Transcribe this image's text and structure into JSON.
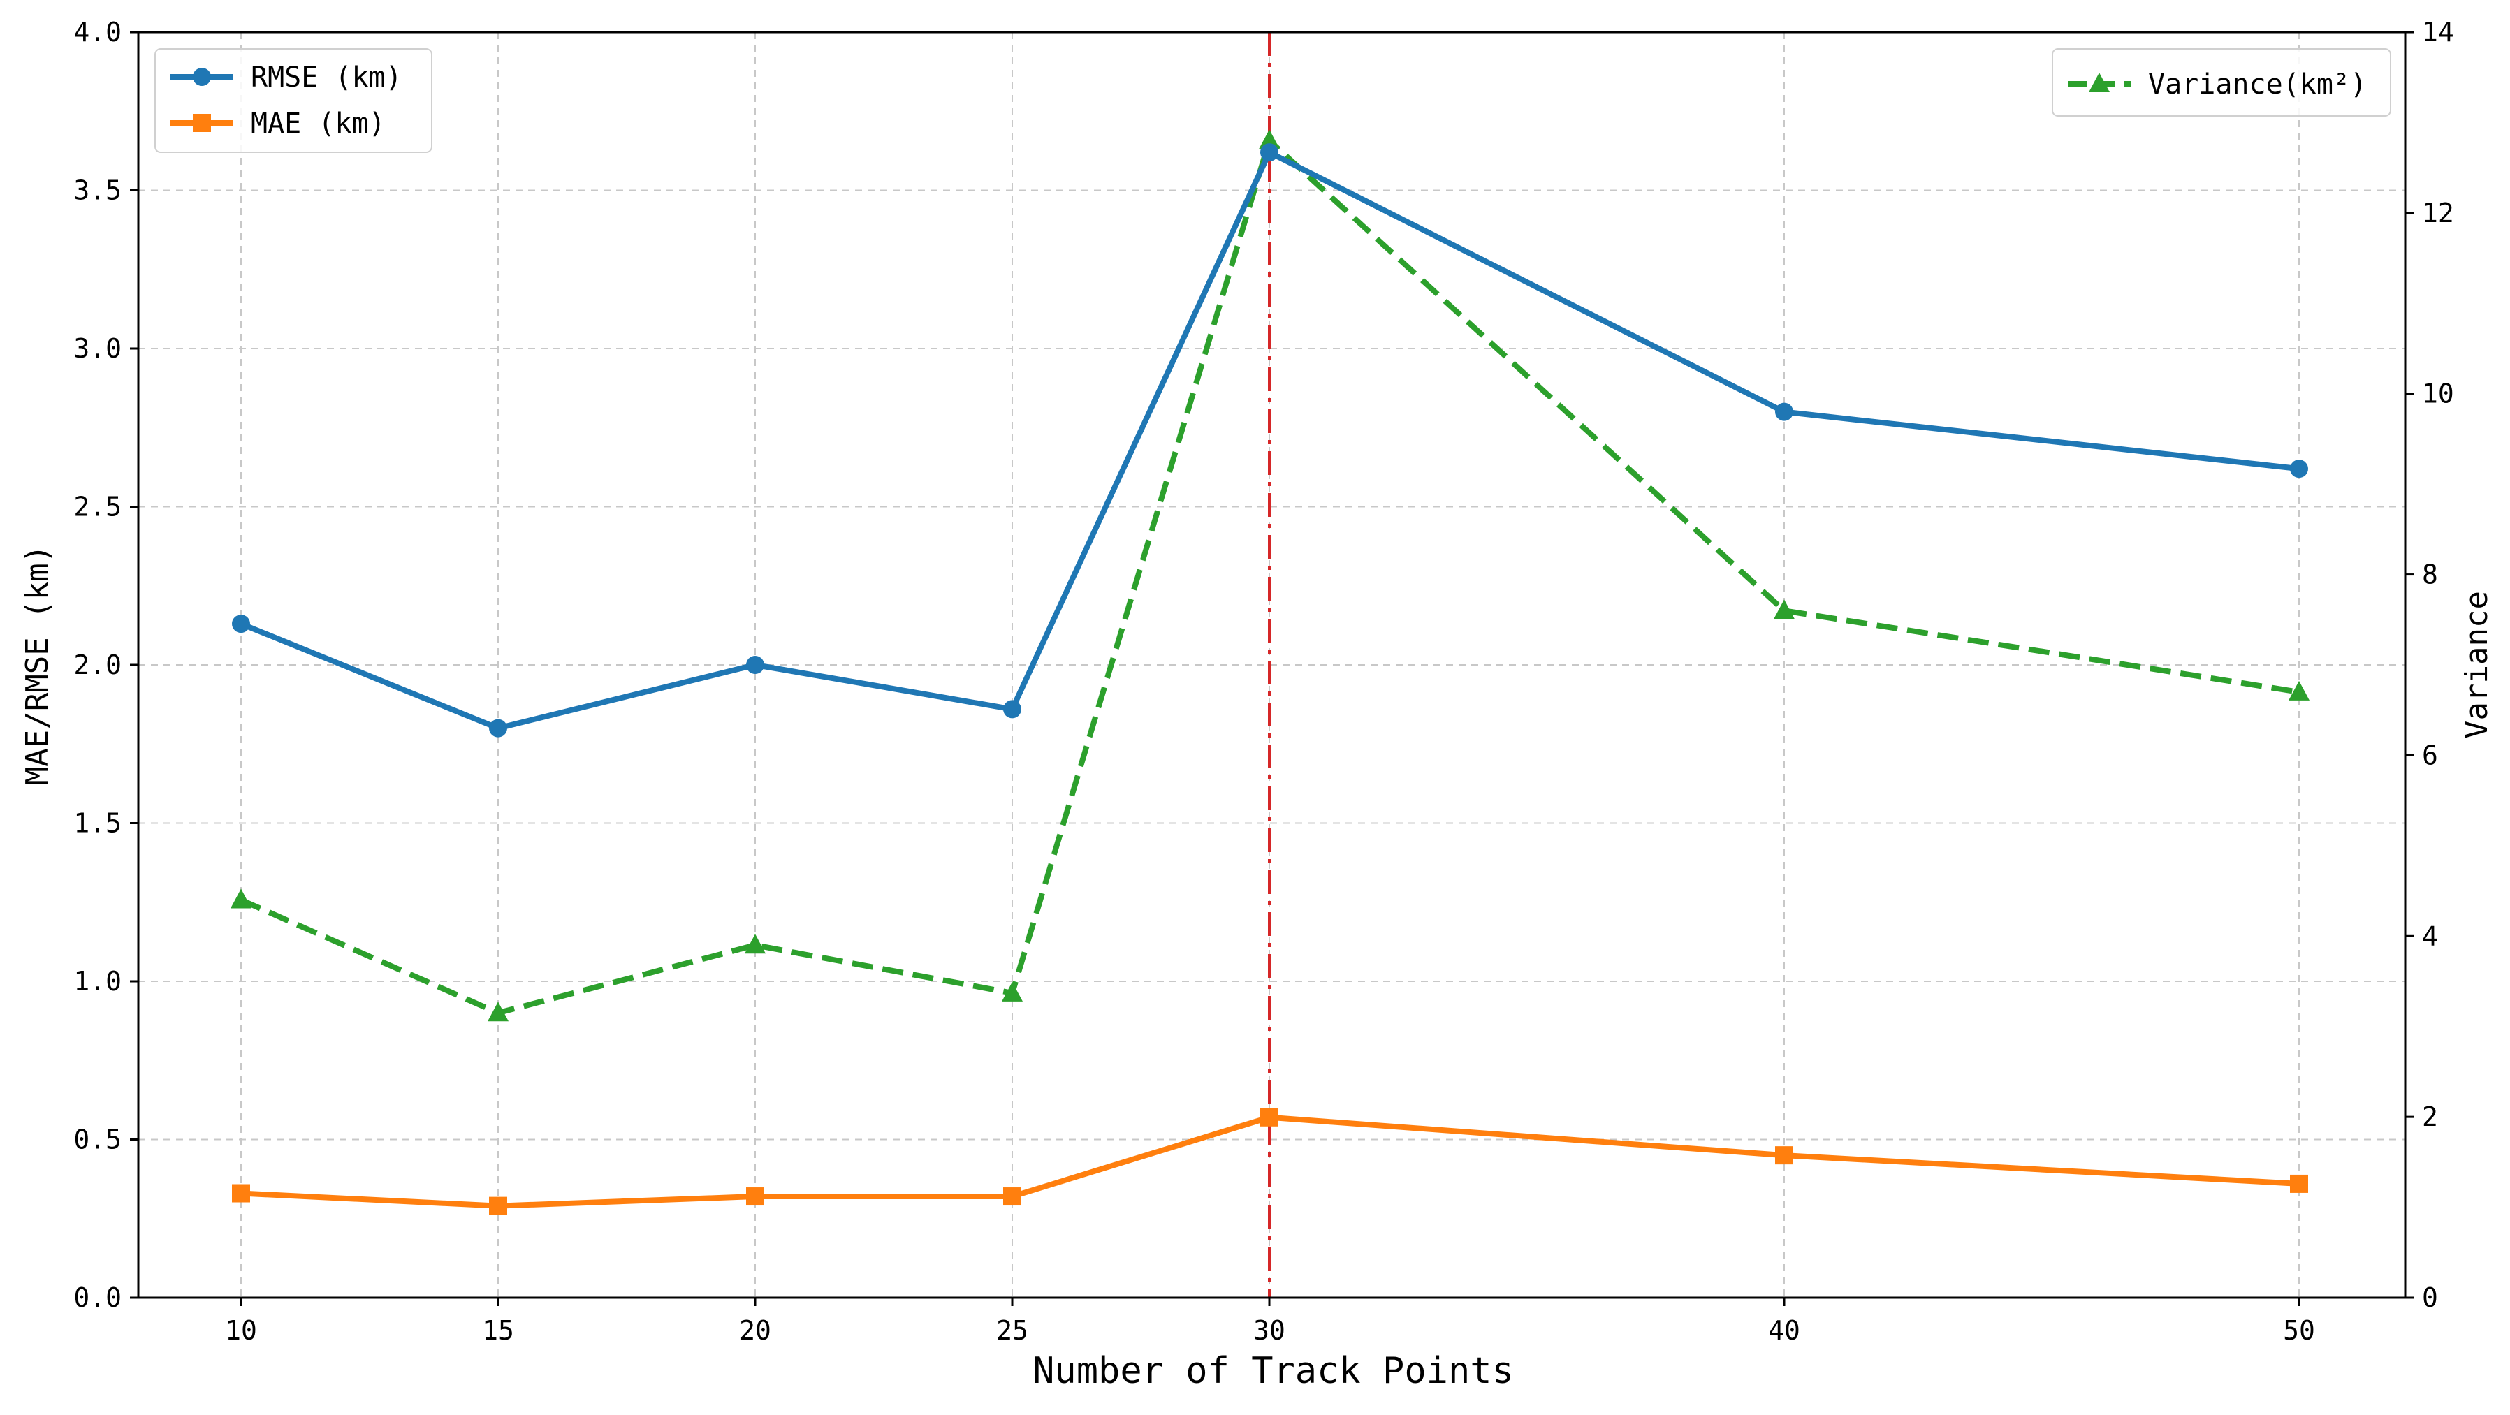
{
  "chart_data": {
    "type": "line",
    "xlabel": "Number of Track Points",
    "ylabel": "MAE/RMSE (km)",
    "y2label": "Variance",
    "categories": [
      "10",
      "15",
      "20",
      "25",
      "30",
      "40",
      "50"
    ],
    "ylim": [
      0,
      4.0
    ],
    "y2lim": [
      0,
      14
    ],
    "yticks": [
      "0.0",
      "0.5",
      "1.0",
      "1.5",
      "2.0",
      "2.5",
      "3.0",
      "3.5",
      "4.0"
    ],
    "y2ticks": [
      "0",
      "2",
      "4",
      "6",
      "8",
      "10",
      "12",
      "14"
    ],
    "grid": true,
    "series": [
      {
        "name": "RMSE (km)",
        "axis": "left",
        "color": "#1f77b4",
        "marker": "circle",
        "style": "solid",
        "values": [
          2.13,
          1.8,
          2.0,
          1.86,
          3.62,
          2.8,
          2.62
        ]
      },
      {
        "name": "MAE (km)",
        "axis": "left",
        "color": "#ff7f0e",
        "marker": "square",
        "style": "solid",
        "values": [
          0.33,
          0.29,
          0.32,
          0.32,
          0.57,
          0.45,
          0.36
        ]
      },
      {
        "name": "Variance(km²)",
        "axis": "right",
        "color": "#2ca02c",
        "marker": "triangle",
        "style": "dashed",
        "values": [
          4.4,
          3.15,
          3.9,
          3.37,
          12.8,
          7.6,
          6.7
        ]
      }
    ],
    "reference_line": {
      "x": "30",
      "color": "#d62728",
      "style": "dash-dot"
    },
    "legends": [
      {
        "placement": "top-left",
        "entries": [
          "RMSE (km)",
          "MAE (km)"
        ]
      },
      {
        "placement": "top-right",
        "entries": [
          "Variance(km²)"
        ]
      }
    ]
  }
}
